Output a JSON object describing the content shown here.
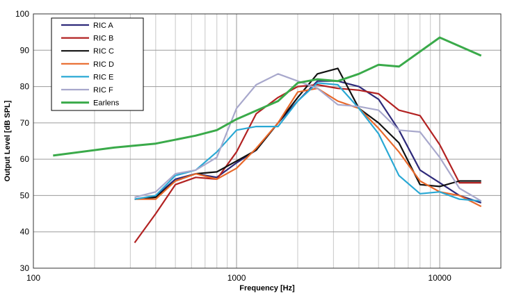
{
  "chart_data": {
    "type": "line",
    "title": "",
    "xlabel": "Frequency [Hz]",
    "ylabel": "Output Level [dB SPL]",
    "xscale": "log",
    "xlim": [
      100,
      20000
    ],
    "ylim": [
      30,
      100
    ],
    "x_tick_labels": [
      "100",
      "1000",
      "10000"
    ],
    "x_tick_values": [
      100,
      1000,
      10000
    ],
    "y_tick_values": [
      30,
      40,
      50,
      60,
      70,
      80,
      90,
      100
    ],
    "y_tick_labels": [
      "30",
      "40",
      "50",
      "60",
      "70",
      "80",
      "90",
      "100"
    ],
    "grid": true,
    "legend_position": "top-left",
    "series": [
      {
        "name": "RIC A",
        "color": "#2e2a7a",
        "x": [
          315,
          400,
          500,
          630,
          800,
          1000,
          1250,
          1600,
          2000,
          2500,
          3150,
          4000,
          5000,
          6300,
          8000,
          10000,
          12500,
          16000
        ],
        "y": [
          49,
          49.8,
          54.5,
          56,
          55,
          59,
          62.5,
          70,
          76,
          81.5,
          81.5,
          80,
          76.5,
          68,
          57,
          53.5,
          50,
          48
        ]
      },
      {
        "name": "RIC B",
        "color": "#b22222",
        "x": [
          315,
          400,
          500,
          630,
          800,
          1000,
          1250,
          1600,
          2000,
          2500,
          3150,
          4000,
          5000,
          6300,
          8000,
          10000,
          12500,
          16000
        ],
        "y": [
          37,
          45,
          53,
          55,
          54.5,
          62,
          72.5,
          77,
          80,
          80.5,
          79.5,
          79,
          78,
          73.5,
          72,
          64,
          53.5,
          53.5
        ]
      },
      {
        "name": "RIC C",
        "color": "#111111",
        "x": [
          315,
          400,
          500,
          630,
          800,
          1000,
          1250,
          1600,
          2000,
          2500,
          3150,
          4000,
          5000,
          6300,
          8000,
          10000,
          12500,
          16000
        ],
        "y": [
          49,
          49.5,
          54,
          56,
          56.5,
          59.5,
          62.5,
          70,
          77,
          83.5,
          85,
          74,
          70,
          64.5,
          53,
          52.5,
          54,
          54
        ]
      },
      {
        "name": "RIC D",
        "color": "#e8682a",
        "x": [
          315,
          400,
          500,
          630,
          800,
          1000,
          1250,
          1600,
          2000,
          2500,
          3150,
          4000,
          5000,
          6300,
          8000,
          10000,
          12500,
          16000
        ],
        "y": [
          49,
          49,
          54,
          56,
          54.5,
          57.5,
          63,
          70,
          78.5,
          79.5,
          76,
          74,
          68.5,
          62,
          54,
          51,
          50,
          47
        ]
      },
      {
        "name": "RIC E",
        "color": "#29a8d4",
        "x": [
          315,
          400,
          500,
          630,
          800,
          1000,
          1250,
          1600,
          2000,
          2500,
          3150,
          4000,
          5000,
          6300,
          8000,
          10000,
          12500,
          16000
        ],
        "y": [
          49,
          50,
          55.5,
          57,
          62,
          68,
          69,
          69,
          76,
          81,
          80.5,
          74,
          67,
          55.5,
          50.5,
          51,
          49,
          48.5
        ]
      },
      {
        "name": "RIC F",
        "color": "#a8a8cc",
        "x": [
          315,
          400,
          500,
          630,
          800,
          1000,
          1250,
          1600,
          2000,
          2500,
          3150,
          4000,
          5000,
          6300,
          8000,
          10000,
          12500,
          16000
        ],
        "y": [
          49.5,
          51,
          56,
          57,
          60.5,
          74,
          80.5,
          83.5,
          81.5,
          79.5,
          75,
          74.5,
          73.5,
          68,
          67.5,
          60.5,
          52,
          48.5
        ]
      },
      {
        "name": "Earlens",
        "color": "#3aaa4a",
        "x": [
          125,
          250,
          400,
          630,
          800,
          1000,
          1600,
          2000,
          2500,
          3150,
          4000,
          5000,
          6300,
          10000,
          16000
        ],
        "y": [
          61,
          63.2,
          64.3,
          66.5,
          68,
          71,
          76,
          81,
          82,
          81.5,
          83.5,
          86,
          85.5,
          93.5,
          88.5
        ]
      }
    ]
  }
}
